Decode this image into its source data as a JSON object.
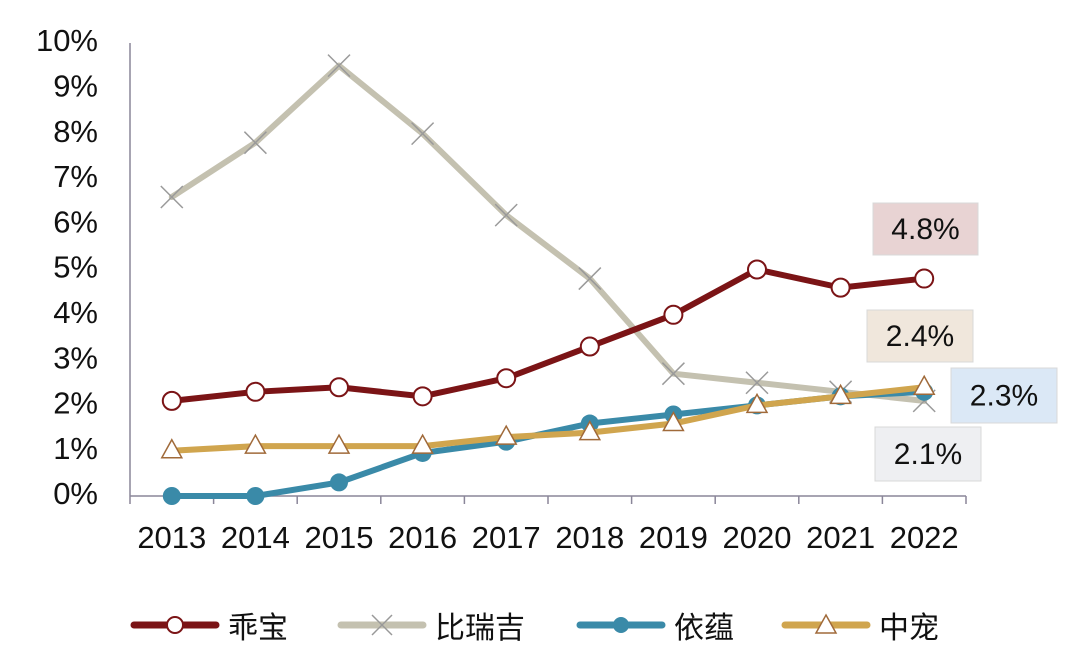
{
  "chart_data": {
    "type": "line",
    "title": "",
    "xlabel": "",
    "ylabel": "",
    "categories": [
      "2013",
      "2014",
      "2015",
      "2016",
      "2017",
      "2018",
      "2019",
      "2020",
      "2021",
      "2022"
    ],
    "ylim": [
      0,
      10
    ],
    "yticks": [
      "0%",
      "1%",
      "2%",
      "3%",
      "4%",
      "5%",
      "6%",
      "7%",
      "8%",
      "9%",
      "10%"
    ],
    "grid": false,
    "legend_position": "bottom",
    "series": [
      {
        "name": "乖宝",
        "color": "#7b1416",
        "marker": "open-circle",
        "values": [
          2.1,
          2.3,
          2.4,
          2.2,
          2.6,
          3.3,
          4.0,
          5.0,
          4.6,
          4.8
        ]
      },
      {
        "name": "比瑞吉",
        "color": "#c4c1b0",
        "marker": "x",
        "values": [
          6.6,
          7.8,
          9.5,
          8.0,
          6.2,
          4.8,
          2.7,
          2.5,
          2.3,
          2.1
        ]
      },
      {
        "name": "依蕴",
        "color": "#3a8aa8",
        "marker": "filled-circle",
        "values": [
          0.0,
          0.0,
          0.3,
          0.95,
          1.2,
          1.6,
          1.8,
          2.0,
          2.2,
          2.3
        ]
      },
      {
        "name": "中宠",
        "color": "#d0a54e",
        "marker": "open-triangle",
        "values": [
          1.0,
          1.1,
          1.1,
          1.1,
          1.3,
          1.4,
          1.6,
          2.0,
          2.2,
          2.4
        ]
      }
    ],
    "annotations": [
      {
        "text": "4.8%",
        "series": "乖宝",
        "bg": "#e8d3d3"
      },
      {
        "text": "2.4%",
        "series": "中宠",
        "bg": "#f0e7dc"
      },
      {
        "text": "2.3%",
        "series": "依蕴",
        "bg": "#dbe8f6"
      },
      {
        "text": "2.1%",
        "series": "比瑞吉",
        "bg": "#eeeff2"
      }
    ]
  },
  "legend": {
    "items": [
      "乖宝",
      "比瑞吉",
      "依蕴",
      "中宠"
    ]
  }
}
